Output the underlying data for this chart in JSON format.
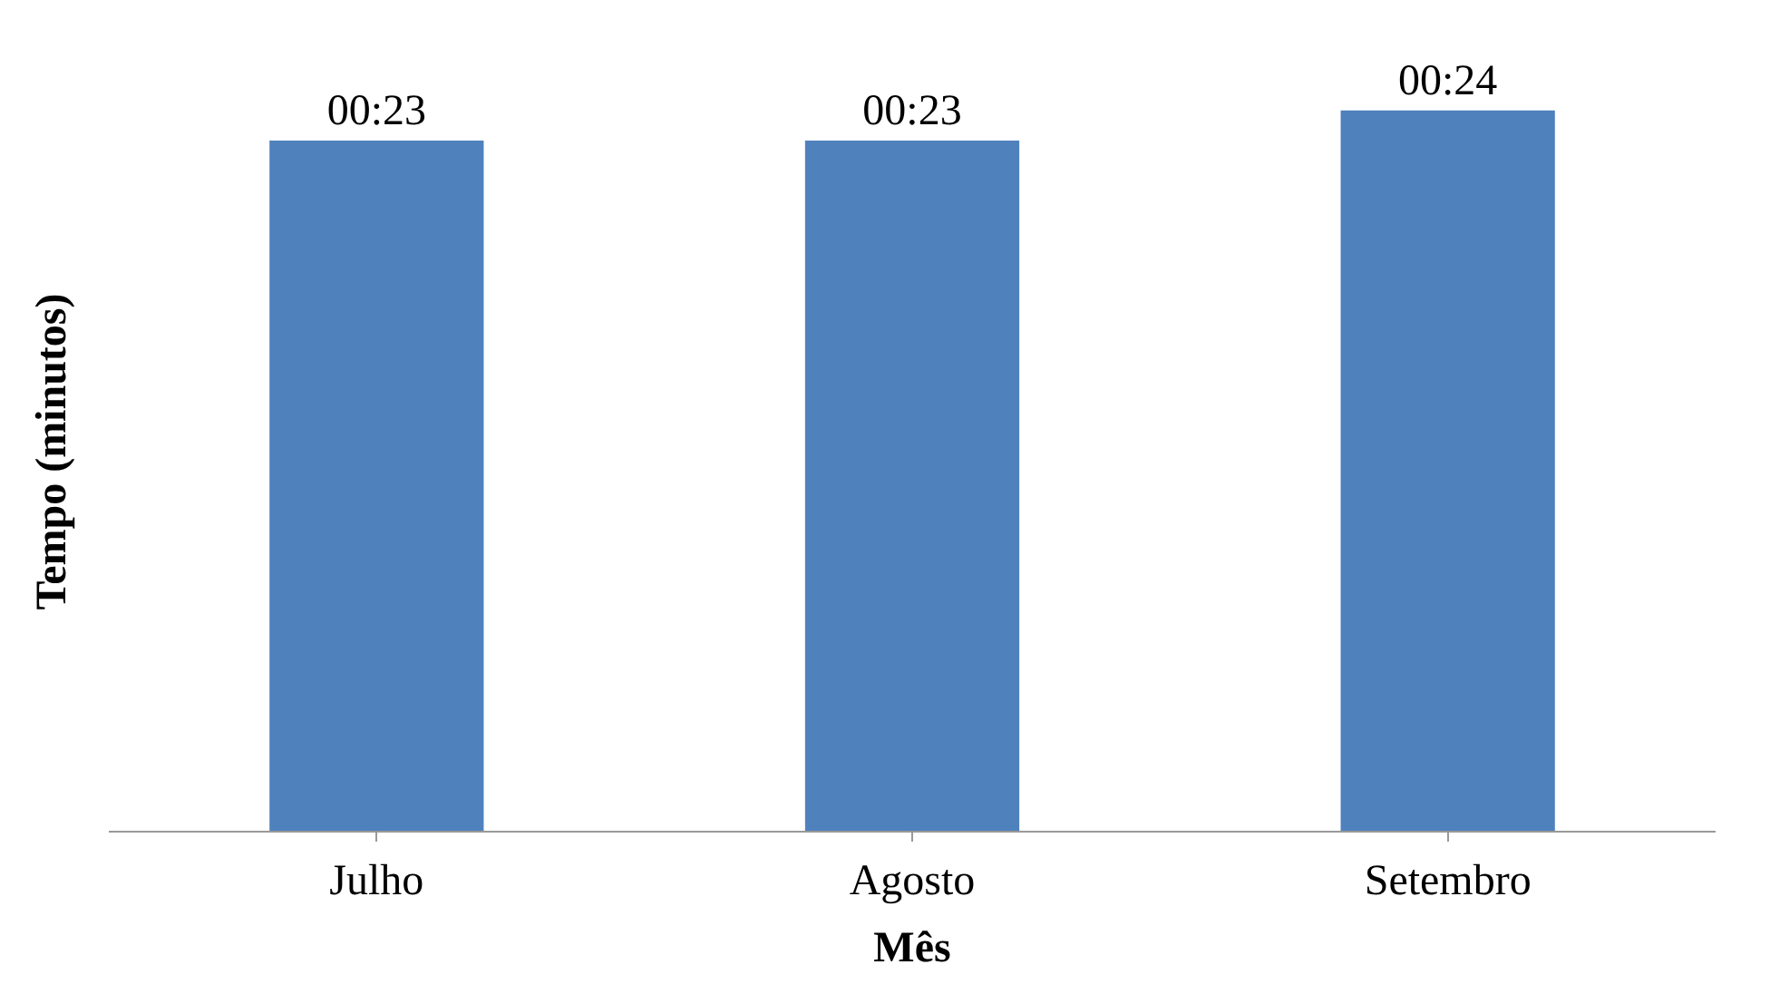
{
  "chart_data": {
    "type": "bar",
    "xlabel": "Mês",
    "ylabel": "Tempo (minutos)",
    "categories": [
      "Julho",
      "Agosto",
      "Setembro"
    ],
    "tick_labels": "x",
    "series": [
      {
        "color": "#4f81bd",
        "values": [
          23,
          23,
          24
        ],
        "value_labels": [
          "00:23",
          "00:23",
          "00:24"
        ]
      }
    ]
  }
}
